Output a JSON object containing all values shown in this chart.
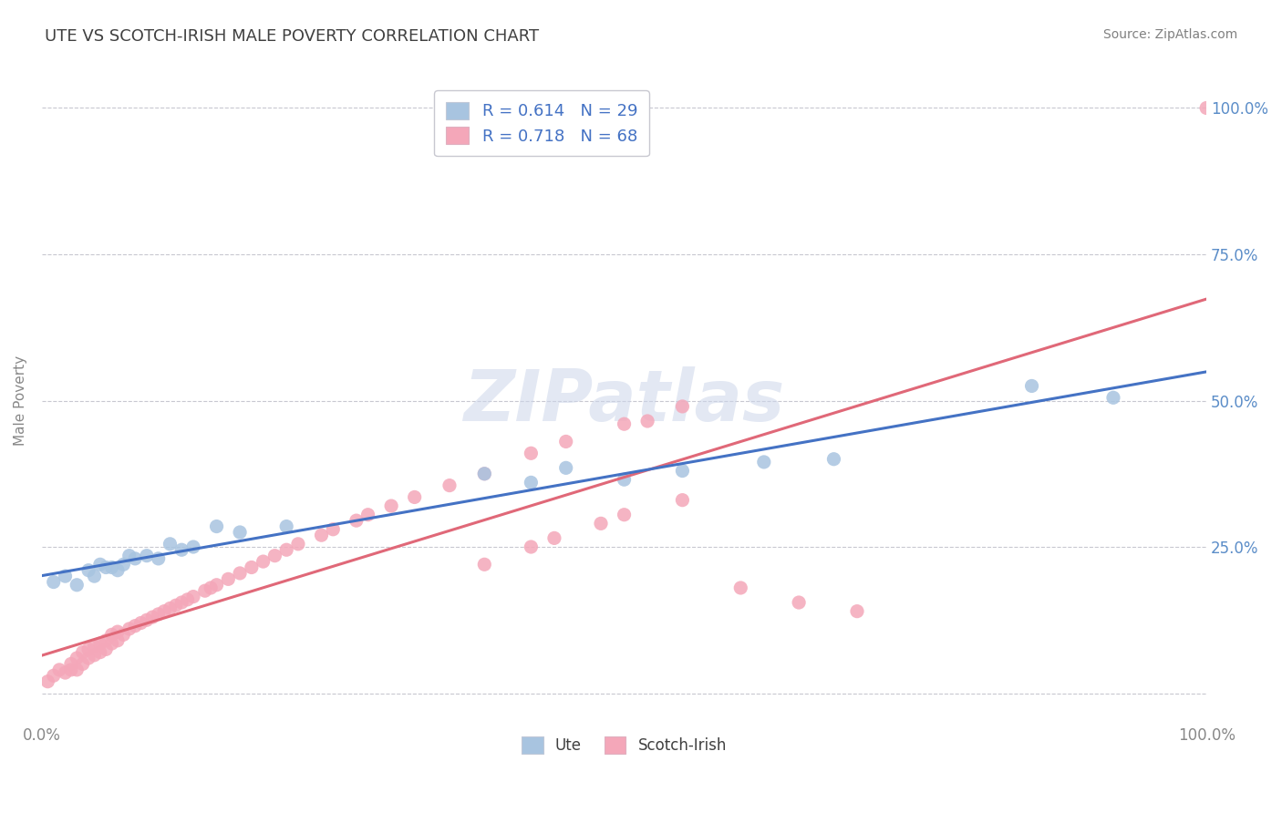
{
  "title": "UTE VS SCOTCH-IRISH MALE POVERTY CORRELATION CHART",
  "source": "Source: ZipAtlas.com",
  "ylabel": "Male Poverty",
  "ute_R": 0.614,
  "ute_N": 29,
  "scotch_R": 0.718,
  "scotch_N": 68,
  "ute_color": "#a8c4e0",
  "scotch_color": "#f4a7b9",
  "ute_line_color": "#4472c4",
  "scotch_line_color": "#e06878",
  "legend_label1": "Ute",
  "legend_label2": "Scotch-Irish",
  "watermark": "ZIPatlas",
  "ute_x": [
    0.01,
    0.02,
    0.03,
    0.04,
    0.045,
    0.05,
    0.055,
    0.06,
    0.065,
    0.07,
    0.075,
    0.08,
    0.09,
    0.1,
    0.11,
    0.12,
    0.13,
    0.15,
    0.17,
    0.21,
    0.38,
    0.42,
    0.45,
    0.5,
    0.55,
    0.62,
    0.68,
    0.85,
    0.92
  ],
  "ute_y": [
    0.19,
    0.2,
    0.185,
    0.21,
    0.2,
    0.22,
    0.215,
    0.215,
    0.21,
    0.22,
    0.235,
    0.23,
    0.235,
    0.23,
    0.255,
    0.245,
    0.25,
    0.285,
    0.275,
    0.285,
    0.375,
    0.36,
    0.385,
    0.365,
    0.38,
    0.395,
    0.4,
    0.525,
    0.505
  ],
  "scotch_x": [
    0.005,
    0.01,
    0.015,
    0.02,
    0.025,
    0.025,
    0.03,
    0.03,
    0.035,
    0.035,
    0.04,
    0.04,
    0.045,
    0.045,
    0.05,
    0.05,
    0.055,
    0.055,
    0.06,
    0.06,
    0.065,
    0.065,
    0.07,
    0.075,
    0.08,
    0.085,
    0.09,
    0.095,
    0.1,
    0.105,
    0.11,
    0.115,
    0.12,
    0.125,
    0.13,
    0.14,
    0.145,
    0.15,
    0.16,
    0.17,
    0.18,
    0.19,
    0.2,
    0.21,
    0.22,
    0.24,
    0.25,
    0.27,
    0.28,
    0.3,
    0.32,
    0.35,
    0.38,
    0.42,
    0.45,
    0.5,
    0.52,
    0.55,
    0.38,
    0.42,
    0.44,
    0.48,
    0.5,
    0.55,
    0.6,
    0.65,
    0.7,
    1.0
  ],
  "scotch_y": [
    0.02,
    0.03,
    0.04,
    0.035,
    0.04,
    0.05,
    0.04,
    0.06,
    0.05,
    0.07,
    0.06,
    0.075,
    0.065,
    0.08,
    0.07,
    0.085,
    0.075,
    0.09,
    0.085,
    0.1,
    0.09,
    0.105,
    0.1,
    0.11,
    0.115,
    0.12,
    0.125,
    0.13,
    0.135,
    0.14,
    0.145,
    0.15,
    0.155,
    0.16,
    0.165,
    0.175,
    0.18,
    0.185,
    0.195,
    0.205,
    0.215,
    0.225,
    0.235,
    0.245,
    0.255,
    0.27,
    0.28,
    0.295,
    0.305,
    0.32,
    0.335,
    0.355,
    0.375,
    0.41,
    0.43,
    0.46,
    0.465,
    0.49,
    0.22,
    0.25,
    0.265,
    0.29,
    0.305,
    0.33,
    0.18,
    0.155,
    0.14,
    1.0
  ],
  "xlim": [
    0.0,
    1.0
  ],
  "ylim": [
    -0.05,
    1.05
  ],
  "yticks": [
    0.0,
    0.25,
    0.5,
    0.75,
    1.0
  ],
  "ytick_labels_right": [
    "",
    "25.0%",
    "50.0%",
    "75.0%",
    "100.0%"
  ],
  "xtick_labels": [
    "0.0%",
    "100.0%"
  ],
  "background_color": "#ffffff",
  "grid_color": "#c8c8d0",
  "title_color": "#404040",
  "source_color": "#808080",
  "tick_label_color": "#5b8dc8"
}
